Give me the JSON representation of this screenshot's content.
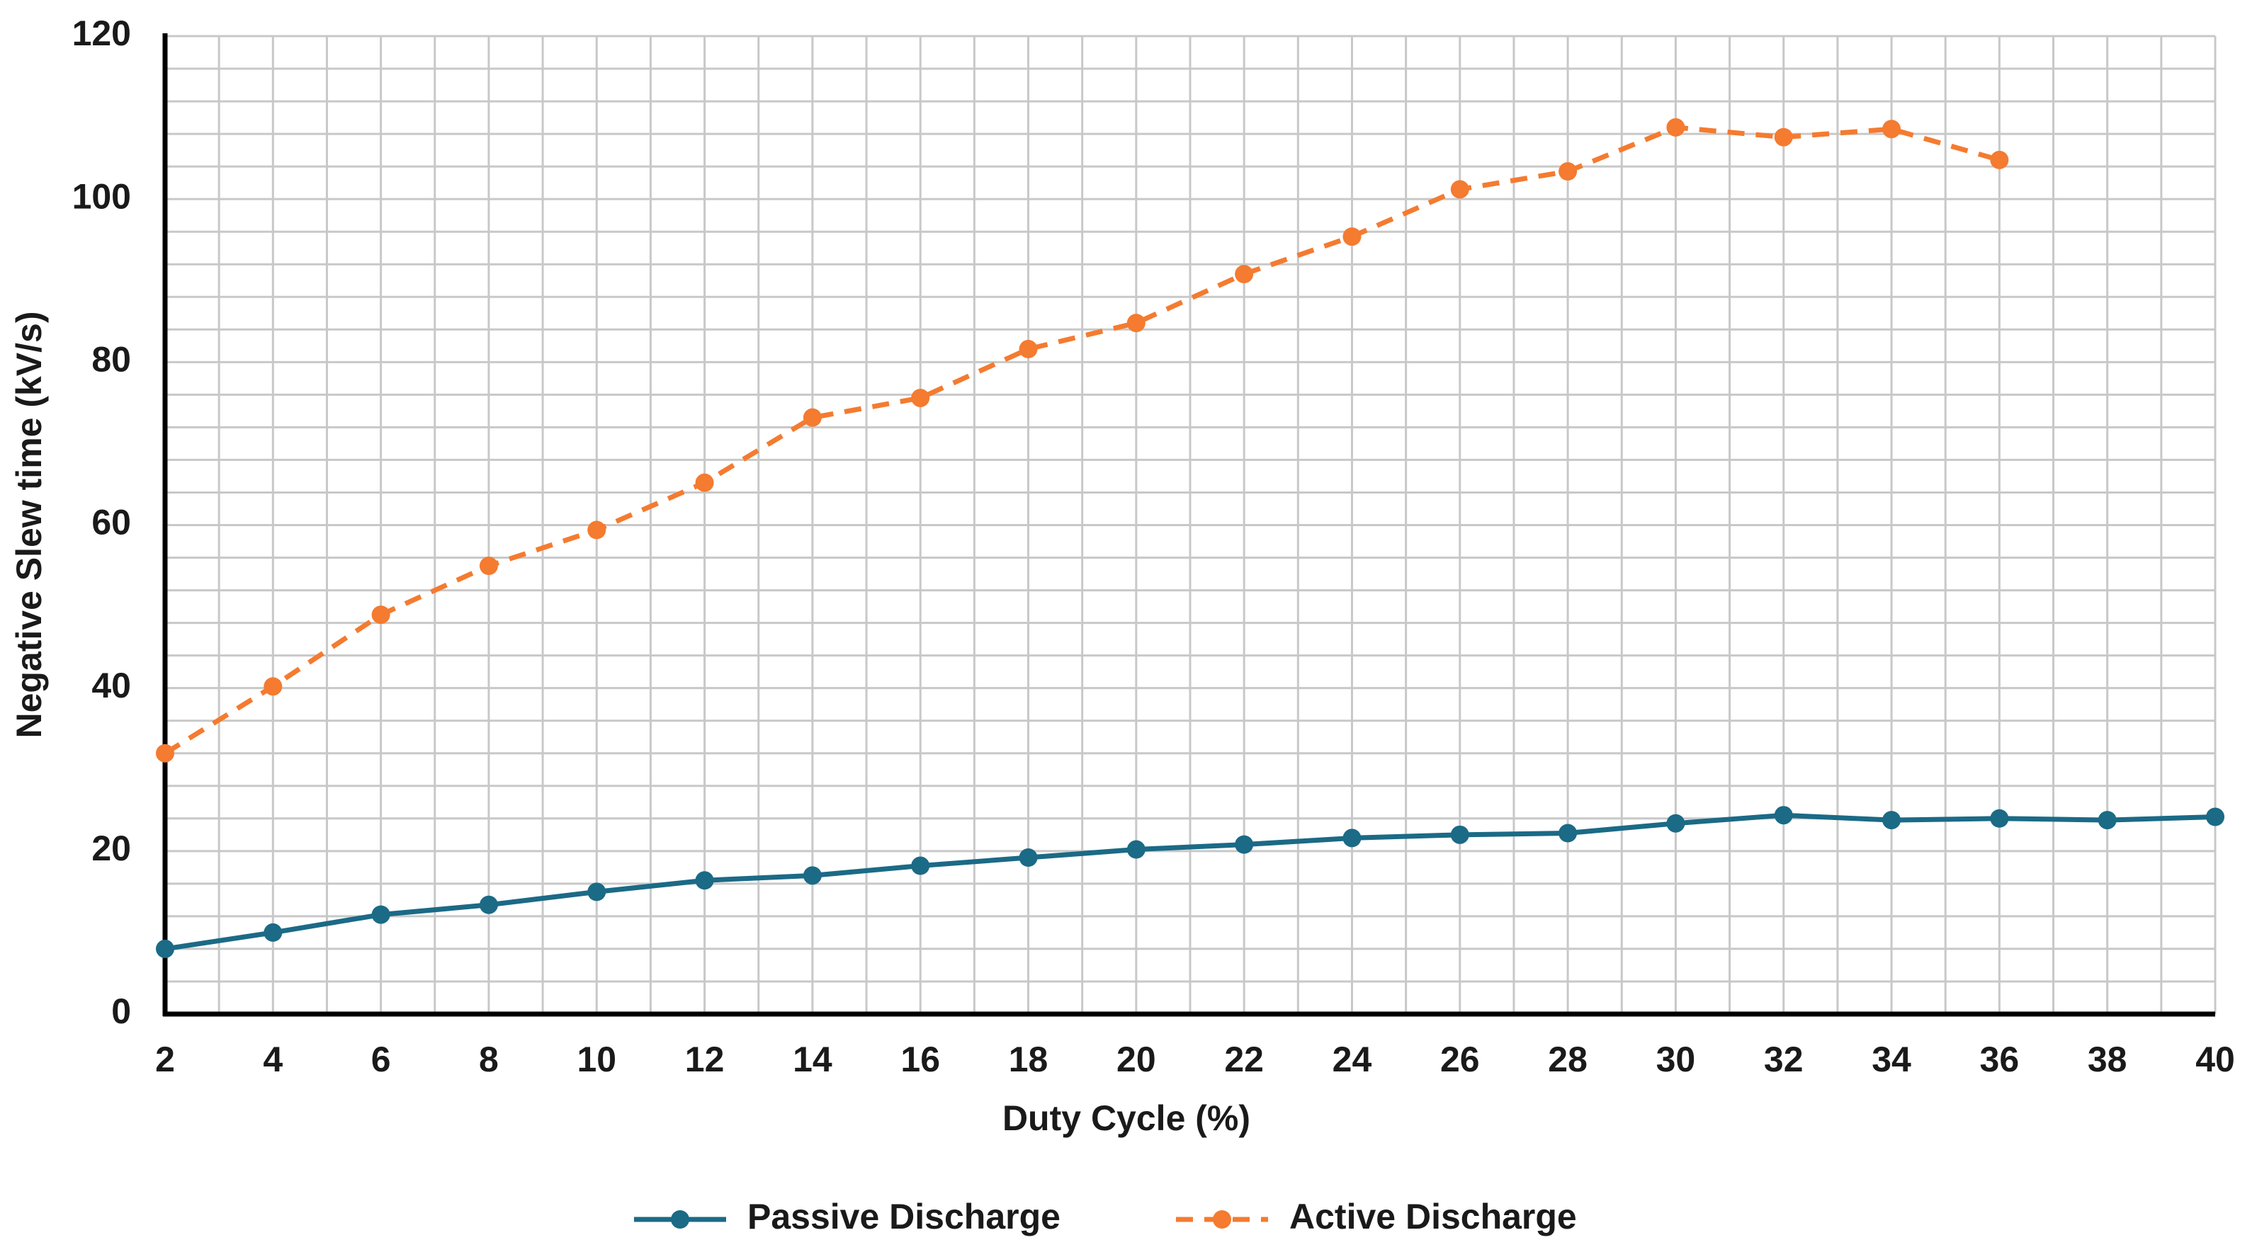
{
  "chart_data": {
    "type": "line",
    "x_label": "Duty Cycle (%)",
    "y_label": "Negative Slew time (kV/s)",
    "x": [
      2,
      4,
      6,
      8,
      10,
      12,
      14,
      16,
      18,
      20,
      22,
      24,
      26,
      28,
      30,
      32,
      34,
      36,
      38,
      40
    ],
    "series": [
      {
        "name": "Passive Discharge",
        "color": "#1b6a86",
        "dash": false,
        "values": [
          8,
          10,
          12.2,
          13.4,
          15,
          16.4,
          17,
          18.2,
          19.2,
          20.2,
          20.8,
          21.6,
          22,
          22.2,
          23.4,
          24.4,
          23.8,
          24,
          23.8,
          24.2
        ]
      },
      {
        "name": "Active Discharge",
        "color": "#f47b30",
        "dash": true,
        "values": [
          32,
          40.2,
          49,
          55,
          59.4,
          65.2,
          73.2,
          75.6,
          81.6,
          84.8,
          90.8,
          95.4,
          101.2,
          103.4,
          108.8,
          107.6,
          108.6,
          104.8,
          null,
          null
        ]
      }
    ],
    "xlim": [
      2,
      40
    ],
    "xticks": [
      2,
      4,
      6,
      8,
      10,
      12,
      14,
      16,
      18,
      20,
      22,
      24,
      26,
      28,
      30,
      32,
      34,
      36,
      38,
      40
    ],
    "ylim": [
      0,
      120
    ],
    "yticks": [
      0,
      20,
      40,
      60,
      80,
      100,
      120
    ],
    "grid": true,
    "legend": "bottom"
  }
}
